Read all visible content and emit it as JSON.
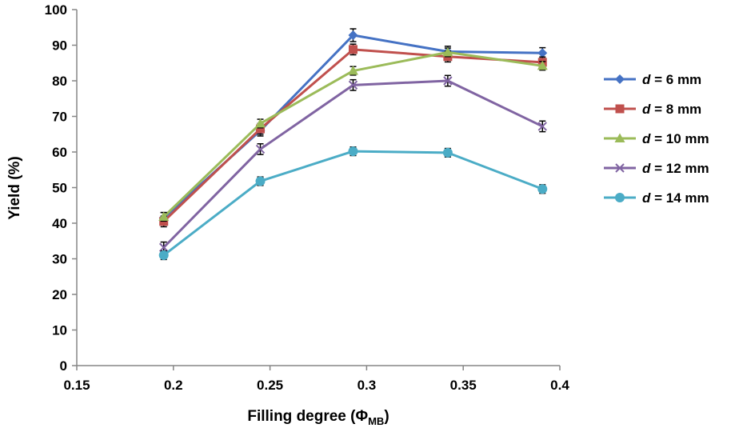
{
  "chart_data": {
    "type": "line",
    "title": "",
    "xlabel_main": "Filling degree (Φ",
    "xlabel_sub": "MB",
    "xlabel_end": ")",
    "ylabel": "Yield (%)",
    "xlim": [
      0.15,
      0.4
    ],
    "ylim": [
      0,
      100
    ],
    "xticks": [
      0.15,
      0.2,
      0.25,
      0.3,
      0.35,
      0.4
    ],
    "yticks": [
      0,
      10,
      20,
      30,
      40,
      50,
      60,
      70,
      80,
      90,
      100
    ],
    "xtick_labels": [
      "0.15",
      "0.2",
      "0.25",
      "0.3",
      "0.35",
      "0.4"
    ],
    "ytick_labels": [
      "0",
      "10",
      "20",
      "30",
      "40",
      "50",
      "60",
      "70",
      "80",
      "90",
      "100"
    ],
    "x": [
      0.195,
      0.245,
      0.293,
      0.342,
      0.391
    ],
    "grid": false,
    "legend_position": "right",
    "series": [
      {
        "name": "d = 6 mm",
        "name_italic": "d",
        "name_rest": " = 6 mm",
        "color": "#4572C4",
        "marker": "diamond",
        "values": [
          41.5,
          66.0,
          92.8,
          88.2,
          87.8
        ],
        "errors": [
          1.5,
          1.5,
          1.8,
          1.5,
          1.5
        ]
      },
      {
        "name": "d = 8 mm",
        "name_italic": "d",
        "name_rest": " = 8 mm",
        "color": "#C0504D",
        "marker": "square",
        "values": [
          40.5,
          66.5,
          88.8,
          86.8,
          85.2
        ],
        "errors": [
          1.5,
          1.5,
          1.5,
          1.5,
          1.5
        ]
      },
      {
        "name": "d = 10 mm",
        "name_italic": "d",
        "name_rest": " = 10 mm",
        "color": "#9BBB59",
        "marker": "triangle",
        "values": [
          41.8,
          68.0,
          82.8,
          88.0,
          84.2
        ],
        "errors": [
          1.2,
          1.2,
          1.2,
          1.2,
          1.2
        ]
      },
      {
        "name": "d = 12 mm",
        "name_italic": "d",
        "name_rest": " = 12 mm",
        "color": "#8064A2",
        "marker": "x",
        "values": [
          33.2,
          60.8,
          78.8,
          80.0,
          67.2
        ],
        "errors": [
          1.5,
          1.5,
          1.5,
          1.5,
          1.5
        ]
      },
      {
        "name": "d = 14 mm",
        "name_italic": "d",
        "name_rest": " = 14 mm",
        "color": "#4BACC6",
        "marker": "circle",
        "values": [
          31.0,
          51.8,
          60.2,
          59.8,
          49.6
        ],
        "errors": [
          1.2,
          1.2,
          1.2,
          1.2,
          1.2
        ]
      }
    ]
  }
}
